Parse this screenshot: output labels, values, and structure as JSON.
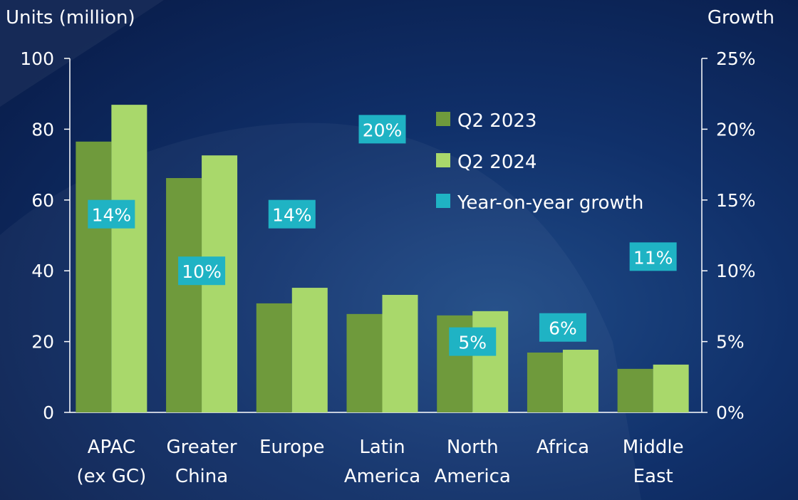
{
  "chart_data": {
    "type": "bar",
    "ylabel": "Units (million)",
    "y2label": "Growth",
    "ylim": [
      0,
      100
    ],
    "y2lim": [
      0,
      25
    ],
    "yticks": [
      "0",
      "20",
      "40",
      "60",
      "80",
      "100"
    ],
    "y2ticks": [
      "0%",
      "5%",
      "10%",
      "15%",
      "20%",
      "25%"
    ],
    "categories": [
      [
        "APAC",
        "(ex GC)"
      ],
      [
        "Greater",
        "China"
      ],
      [
        "Europe"
      ],
      [
        "Latin",
        "America"
      ],
      [
        "North",
        "America"
      ],
      [
        "Africa"
      ],
      [
        "Middle",
        "East"
      ]
    ],
    "series": [
      {
        "name": "Q2 2023",
        "color": "#6f9a3c",
        "values": [
          76.5,
          66.2,
          30.8,
          27.8,
          27.4,
          16.9,
          12.3
        ]
      },
      {
        "name": "Q2 2024",
        "color": "#a9d86b",
        "values": [
          86.9,
          72.6,
          35.2,
          33.2,
          28.6,
          17.7,
          13.5
        ]
      }
    ],
    "growth": {
      "name": "Year-on-year growth",
      "color": "#1fb3c4",
      "values": [
        14,
        10,
        14,
        20,
        5,
        6,
        11
      ],
      "labels": [
        "14%",
        "10%",
        "14%",
        "20%",
        "5%",
        "6%",
        "11%"
      ]
    },
    "legend": "top-center",
    "grid": false
  }
}
